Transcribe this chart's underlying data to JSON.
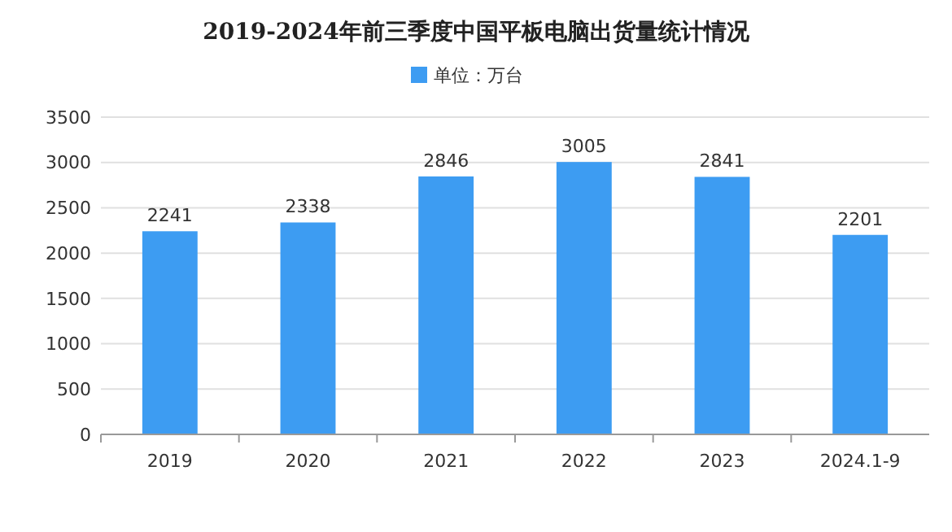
{
  "chart_data": {
    "type": "bar",
    "title": "2019-2024年前三季度中国平板电脑出货量统计情况",
    "categories": [
      "2019",
      "2020",
      "2021",
      "2022",
      "2023",
      "2024.1-9"
    ],
    "series": [
      {
        "name": "单位：万台",
        "color": "#3d9cf2",
        "values": [
          2241,
          2338,
          2846,
          3005,
          2841,
          2201
        ]
      }
    ],
    "ylim": [
      0,
      3500
    ],
    "yticks": [
      0,
      500,
      1000,
      1500,
      2000,
      2500,
      3000,
      3500
    ],
    "grid": "y",
    "legend": "top",
    "data_labels": true
  }
}
